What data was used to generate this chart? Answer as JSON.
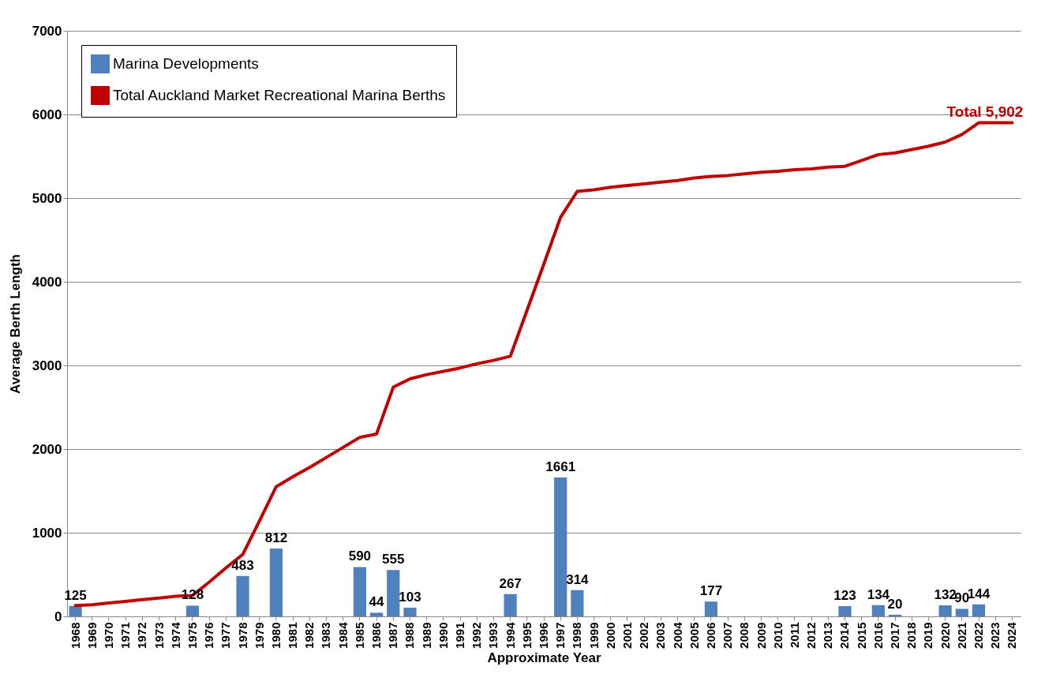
{
  "chart_data": {
    "type": "bar",
    "xlabel": "Approximate Year",
    "ylabel": "Average Berth Length",
    "categories": [
      "1968",
      "1969",
      "1970",
      "1971",
      "1972",
      "1973",
      "1974",
      "1975",
      "1976",
      "1977",
      "1978",
      "1979",
      "1980",
      "1981",
      "1982",
      "1983",
      "1984",
      "1985",
      "1986",
      "1987",
      "1988",
      "1989",
      "1990",
      "1991",
      "1992",
      "1993",
      "1994",
      "1995",
      "1996",
      "1997",
      "1998",
      "1999",
      "2000",
      "2001",
      "2002",
      "2003",
      "2004",
      "2005",
      "2006",
      "2007",
      "2008",
      "2009",
      "2010",
      "2011",
      "2012",
      "2013",
      "2014",
      "2015",
      "2016",
      "2017",
      "2018",
      "2019",
      "2020",
      "2021",
      "2022",
      "2023",
      "2024"
    ],
    "series": [
      {
        "name": "Marina Developments",
        "color": "#4f81bd",
        "values": [
          125,
          null,
          null,
          null,
          null,
          null,
          null,
          128,
          null,
          null,
          483,
          null,
          812,
          null,
          null,
          null,
          null,
          590,
          44,
          555,
          103,
          null,
          null,
          null,
          null,
          null,
          267,
          null,
          null,
          1661,
          314,
          null,
          null,
          null,
          null,
          null,
          null,
          null,
          177,
          null,
          null,
          null,
          null,
          null,
          null,
          null,
          123,
          null,
          134,
          20,
          null,
          null,
          132,
          90,
          144,
          null,
          null
        ],
        "value_labels": [
          "125",
          null,
          null,
          null,
          null,
          null,
          null,
          "128",
          null,
          null,
          "483",
          null,
          "812",
          null,
          null,
          null,
          null,
          "590",
          "44",
          "555",
          "103",
          null,
          null,
          null,
          null,
          null,
          "267",
          null,
          null,
          "1661",
          "314",
          null,
          null,
          null,
          null,
          null,
          null,
          null,
          "177",
          null,
          null,
          null,
          null,
          null,
          null,
          null,
          "123",
          null,
          "134",
          "20",
          null,
          null,
          "132",
          "90",
          "144",
          null,
          null
        ]
      },
      {
        "name": "Total Auckland Market Recreational Marina Berths",
        "type": "line",
        "color": "#c00000",
        "values": [
          130,
          140,
          160,
          180,
          200,
          220,
          240,
          250,
          410,
          580,
          740,
          1140,
          1550,
          1670,
          1780,
          1900,
          2020,
          2140,
          2180,
          2740,
          2840,
          2890,
          2930,
          2970,
          3020,
          3060,
          3110,
          3660,
          4210,
          4770,
          5080,
          5100,
          5130,
          5150,
          5170,
          5190,
          5210,
          5240,
          5260,
          5270,
          5290,
          5310,
          5320,
          5340,
          5350,
          5370,
          5380,
          5450,
          5520,
          5540,
          5580,
          5620,
          5670,
          5760,
          5900,
          5900,
          5900
        ]
      }
    ],
    "ylim": [
      0,
      7000
    ],
    "yticks": [
      0,
      1000,
      2000,
      3000,
      4000,
      5000,
      6000,
      7000
    ],
    "grid": "y",
    "legend": "top left",
    "annotations": [
      {
        "text": "Total 5,902",
        "x": "2024",
        "y": 5902
      }
    ]
  }
}
